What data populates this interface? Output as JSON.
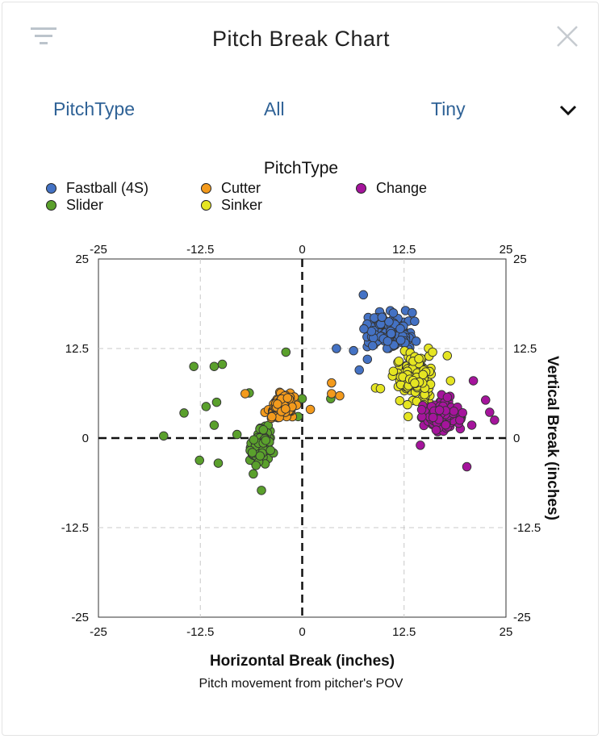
{
  "header": {
    "title": "Pitch Break Chart"
  },
  "controls": [
    {
      "label": "PitchType"
    },
    {
      "label": "All"
    },
    {
      "label": "Tiny"
    }
  ],
  "colors": {
    "Fastball (4S)": "#4472c4",
    "Cutter": "#f39a1c",
    "Change": "#a5149c",
    "Slider": "#5aa02c",
    "Sinker": "#e5e522"
  },
  "chart_data": {
    "type": "scatter",
    "title": "Pitch Break Chart",
    "xlabel": "Horizontal Break (inches)",
    "ylabel": "Vertical Break (inches)",
    "subtitle": "Pitch movement from pitcher's POV",
    "legend_title": "PitchType",
    "legend_position": "top",
    "xlim": [
      -25,
      25
    ],
    "ylim": [
      -25,
      25
    ],
    "ticks": [
      "-25",
      "-12.5",
      "0",
      "12.5",
      "25"
    ],
    "grid": true,
    "series": [
      {
        "name": "Fastball (4S)",
        "center": [
          10.5,
          15.0
        ],
        "spread": [
          2.6,
          2.2
        ],
        "count": 170,
        "points": [
          [
            7.5,
            20.0
          ],
          [
            4.2,
            12.5
          ],
          [
            6.3,
            12.2
          ],
          [
            7.0,
            9.5
          ],
          [
            13.5,
            17.5
          ],
          [
            13.8,
            16.3
          ],
          [
            8.0,
            11.0
          ]
        ]
      },
      {
        "name": "Sinker",
        "center": [
          13.8,
          8.5
        ],
        "spread": [
          2.3,
          3.0
        ],
        "count": 150,
        "points": [
          [
            9.0,
            7.0
          ],
          [
            9.6,
            6.9
          ],
          [
            16.0,
            12.0
          ],
          [
            17.8,
            11.5
          ],
          [
            13.0,
            3.0
          ],
          [
            18.2,
            8.0
          ]
        ]
      },
      {
        "name": "Change",
        "center": [
          17.5,
          3.2
        ],
        "spread": [
          2.0,
          1.9
        ],
        "count": 140,
        "points": [
          [
            20.2,
            -4.0
          ],
          [
            23.6,
            2.5
          ],
          [
            23.0,
            3.6
          ],
          [
            22.5,
            5.3
          ],
          [
            21.0,
            8.0
          ],
          [
            14.5,
            -1.0
          ]
        ]
      },
      {
        "name": "Cutter",
        "center": [
          -2.5,
          4.3
        ],
        "spread": [
          1.9,
          1.5
        ],
        "count": 90,
        "points": [
          [
            3.6,
            7.7
          ],
          [
            4.6,
            5.9
          ],
          [
            3.6,
            6.2
          ],
          [
            -1.8,
            5.6
          ],
          [
            -7.0,
            6.2
          ],
          [
            1.0,
            4.0
          ]
        ]
      },
      {
        "name": "Slider",
        "center": [
          -5.0,
          -1.0
        ],
        "spread": [
          1.2,
          2.1
        ],
        "count": 110,
        "points": [
          [
            -17.0,
            0.3
          ],
          [
            -13.3,
            10.0
          ],
          [
            -10.8,
            10.0
          ],
          [
            -9.8,
            10.3
          ],
          [
            -10.5,
            5.0
          ],
          [
            -14.5,
            3.5
          ],
          [
            -11.8,
            4.4
          ],
          [
            -10.8,
            1.8
          ],
          [
            -12.6,
            -3.1
          ],
          [
            -10.3,
            -3.5
          ],
          [
            -8.0,
            0.5
          ],
          [
            -5.0,
            -7.3
          ],
          [
            -6.0,
            -5.0
          ],
          [
            -2.0,
            12.0
          ],
          [
            0.0,
            5.5
          ],
          [
            -0.5,
            3.0
          ],
          [
            3.5,
            5.5
          ],
          [
            -6.5,
            6.3
          ]
        ]
      }
    ]
  }
}
